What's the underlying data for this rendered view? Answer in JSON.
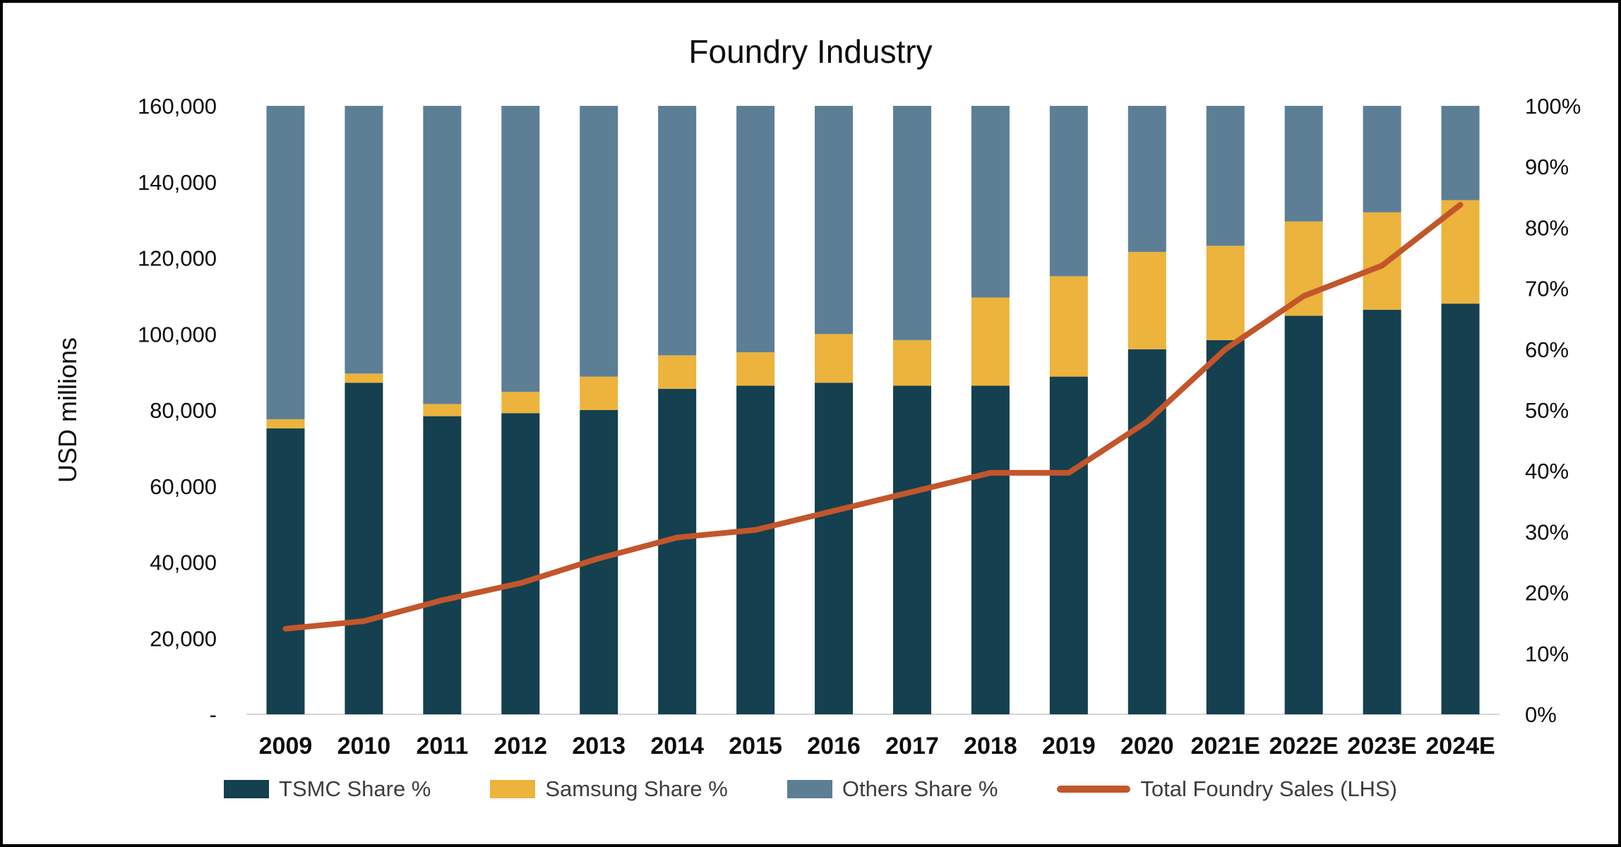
{
  "chart_data": {
    "type": "combo",
    "title": "Foundry Industry",
    "ylabel_left": "USD millions",
    "legend_position": "bottom",
    "grid": false,
    "categories": [
      "2009",
      "2010",
      "2011",
      "2012",
      "2013",
      "2014",
      "2015",
      "2016",
      "2017",
      "2018",
      "2019",
      "2020",
      "2021E",
      "2022E",
      "2023E",
      "2024E"
    ],
    "left_axis": {
      "min": 0,
      "max": 160000,
      "tick_step": 20000,
      "tick_labels": [
        "-",
        "20,000",
        "40,000",
        "60,000",
        "80,000",
        "100,000",
        "120,000",
        "140,000",
        "160,000"
      ]
    },
    "right_axis": {
      "min": 0,
      "max": 100,
      "tick_step": 10,
      "tick_labels": [
        "0%",
        "10%",
        "20%",
        "30%",
        "40%",
        "50%",
        "60%",
        "70%",
        "80%",
        "90%",
        "100%"
      ]
    },
    "series": [
      {
        "name": "TSMC Share %",
        "key": "tsmc-share",
        "type": "bar_stack",
        "axis": "right",
        "unit": "%",
        "color": "#14404f",
        "values": [
          47,
          54.5,
          49,
          49.5,
          50,
          53.5,
          54,
          54.5,
          54,
          54,
          55.5,
          60,
          61.5,
          65.5,
          66.5,
          67.5
        ]
      },
      {
        "name": "Samsung Share %",
        "key": "samsung-share",
        "type": "bar_stack",
        "axis": "right",
        "unit": "%",
        "color": "#ecb33d",
        "values": [
          1.5,
          1.5,
          2,
          3.5,
          5.5,
          5.5,
          5.5,
          8,
          7.5,
          14.5,
          16.5,
          16,
          15.5,
          15.5,
          16,
          17
        ]
      },
      {
        "name": "Others Share %",
        "key": "others-share",
        "type": "bar_stack",
        "axis": "right",
        "unit": "%",
        "color": "#5c7f96",
        "values": [
          51.5,
          44,
          49,
          47,
          44.5,
          41,
          40.5,
          37.5,
          38.5,
          31.5,
          28,
          24,
          23,
          19,
          17.5,
          15.5
        ]
      },
      {
        "name": "Total Foundry Sales (LHS)",
        "key": "total-foundry-sales",
        "type": "line",
        "axis": "left",
        "unit": "USD millions",
        "color": "#c2562b",
        "values": [
          22500,
          24500,
          30000,
          34500,
          41000,
          46500,
          48500,
          53500,
          58500,
          63500,
          63500,
          77000,
          96000,
          110000,
          118000,
          134000
        ]
      }
    ]
  }
}
